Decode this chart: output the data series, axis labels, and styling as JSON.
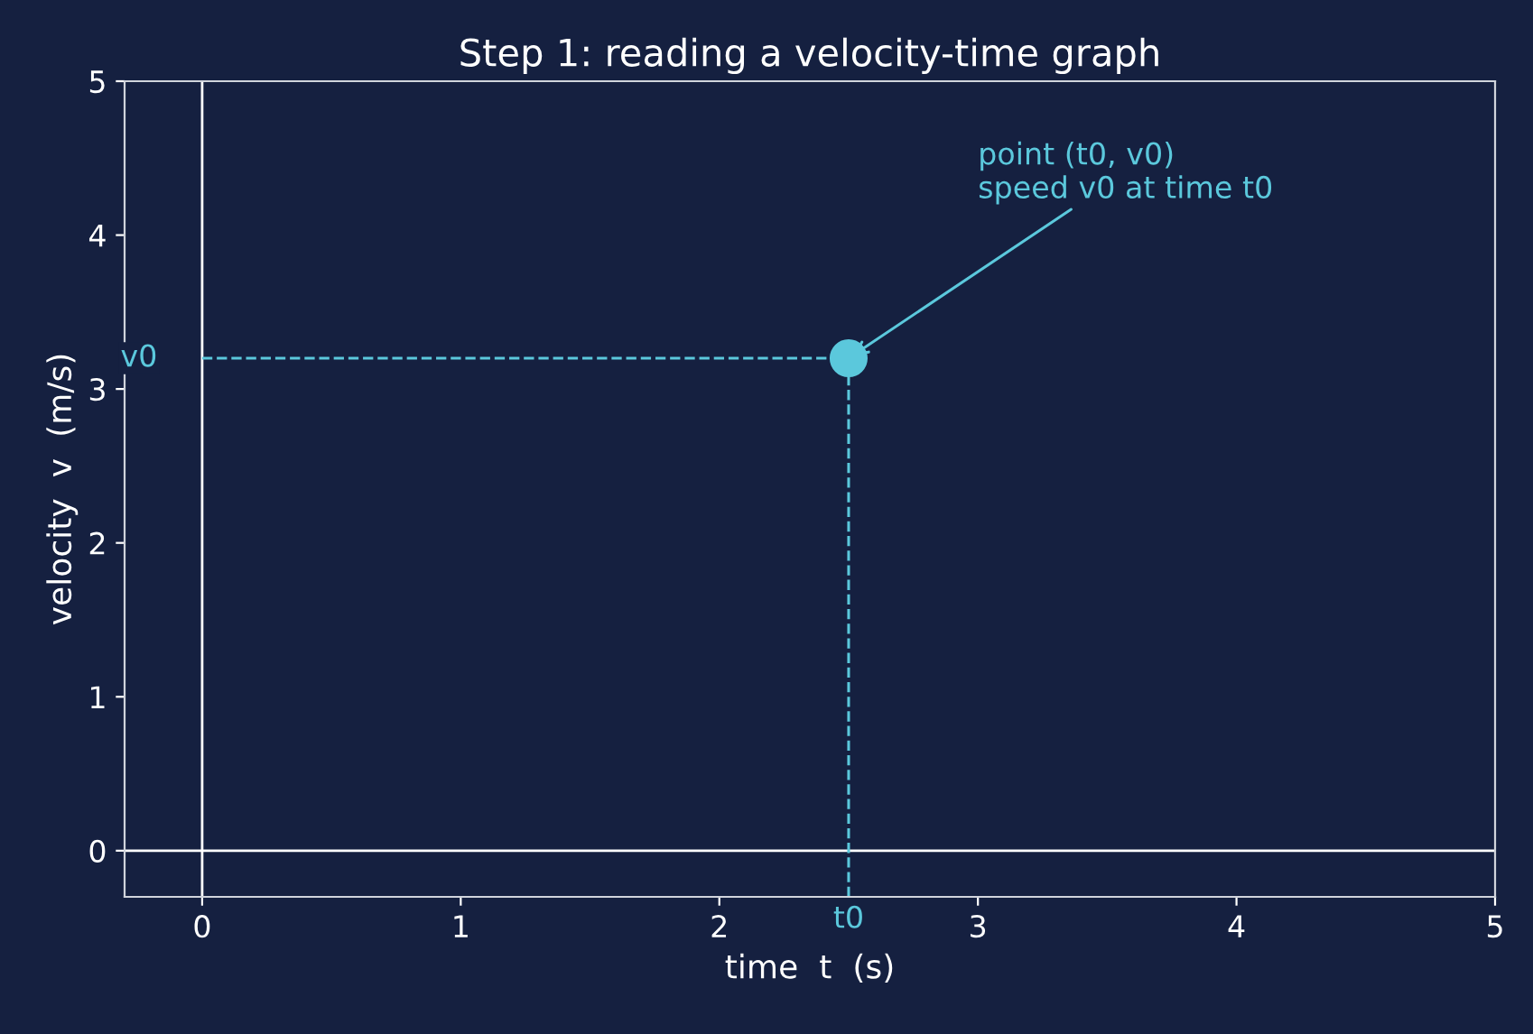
{
  "chart_data": {
    "type": "scatter",
    "title": "Step 1: reading a velocity-time graph",
    "xlabel": "time  t  (s)",
    "ylabel": "velocity  v  (m/s)",
    "x": [
      2.5
    ],
    "series": [
      {
        "color": "#5bc8dc",
        "values": [
          3.2
        ]
      }
    ],
    "xlim": [
      -0.3,
      5
    ],
    "ylim": [
      -0.3,
      5
    ],
    "xticks": [
      0,
      1,
      2,
      3,
      4,
      5
    ],
    "yticks": [
      0,
      1,
      2,
      3,
      4,
      5
    ],
    "grid": false,
    "legend": false,
    "marker": "circle",
    "ref_lines": [
      {
        "axis": "x",
        "value": 0,
        "color": "#ffffff",
        "line_style": "solid"
      },
      {
        "axis": "y",
        "value": 0,
        "color": "#ffffff",
        "line_style": "solid"
      },
      {
        "axis": "y",
        "value": 3.2,
        "label": "v0",
        "color": "#5bc8dc",
        "line_style": "dashed"
      },
      {
        "axis": "x",
        "value": 2.5,
        "label": "t0",
        "color": "#5bc8dc",
        "line_style": "dashed"
      }
    ],
    "annotations": [
      {
        "text": "point (t0, v0)\nspeed v0 at time t0",
        "x": 2.5,
        "y": 3.2
      }
    ]
  }
}
